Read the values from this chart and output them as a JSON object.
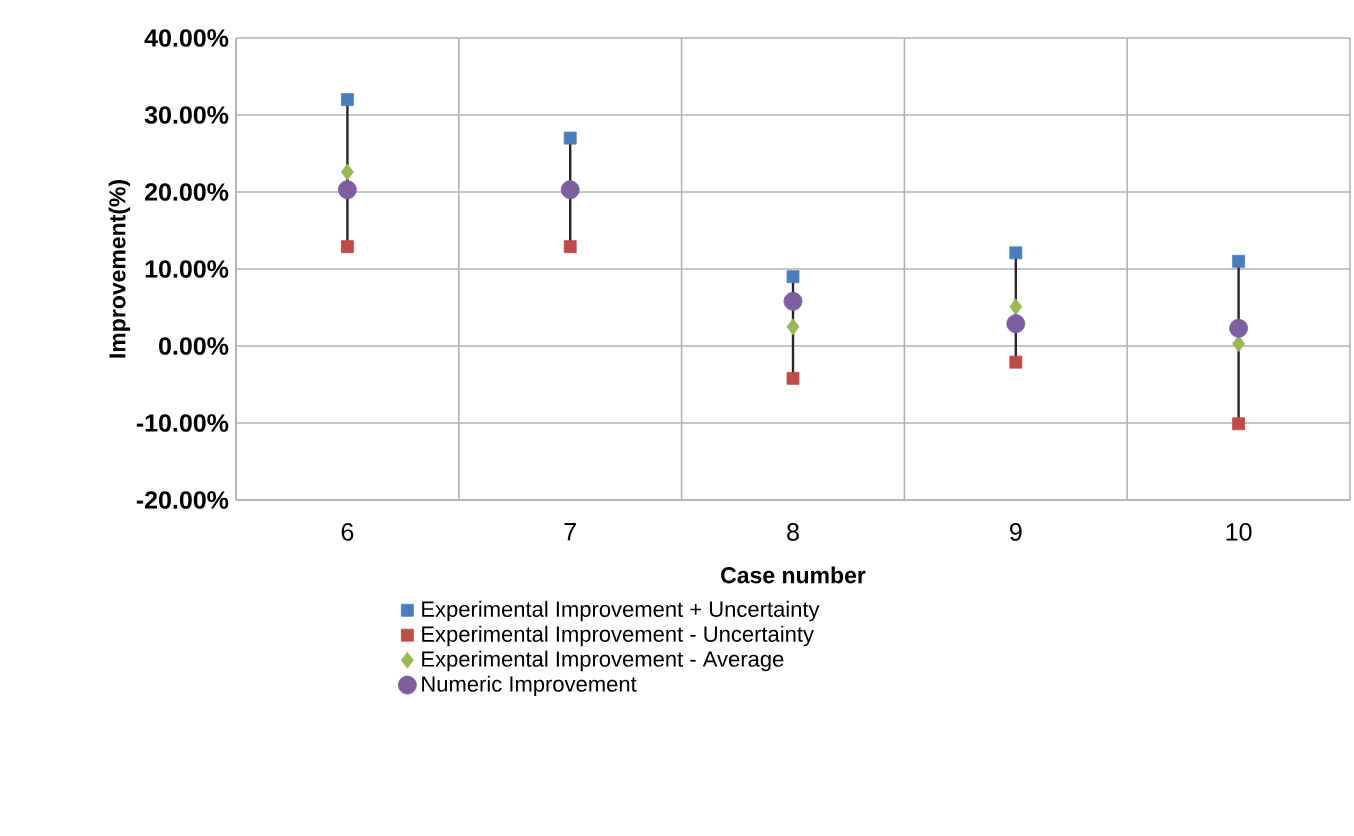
{
  "chart_data": {
    "type": "scatter",
    "xlabel": "Case number",
    "ylabel": "Improvement(%)",
    "categories": [
      "6",
      "7",
      "8",
      "9",
      "10"
    ],
    "ylim": [
      -20,
      40
    ],
    "yticks": [
      {
        "value": -20,
        "label": "-20.00%"
      },
      {
        "value": -10,
        "label": "-10.00%"
      },
      {
        "value": 0,
        "label": "0.00%"
      },
      {
        "value": 10,
        "label": "10.00%"
      },
      {
        "value": 20,
        "label": "20.00%"
      },
      {
        "value": 30,
        "label": "30.00%"
      },
      {
        "value": 40,
        "label": "40.00%"
      }
    ],
    "grid": true,
    "legend": "bottom",
    "series": [
      {
        "name": "Experimental Improvement + Uncertainty",
        "color": "#4a7ebb",
        "marker": "square",
        "values": [
          32.0,
          27.0,
          9.0,
          12.1,
          11.0
        ]
      },
      {
        "name": "Experimental Improvement - Uncertainty",
        "color": "#be4b48",
        "marker": "square",
        "values": [
          12.9,
          12.9,
          -4.2,
          -2.1,
          -10.1
        ]
      },
      {
        "name": "Experimental Improvement - Average",
        "color": "#98b954",
        "marker": "diamond",
        "values": [
          22.6,
          null,
          2.5,
          5.1,
          0.3
        ]
      },
      {
        "name": "Numeric Improvement",
        "color": "#7d5fa0",
        "marker": "circle",
        "values": [
          20.3,
          20.3,
          5.8,
          2.9,
          2.3
        ]
      },
      {
        "type": "line",
        "color": "#262626",
        "x": [
          "6",
          "6"
        ],
        "values": [
          12.9,
          32.0
        ]
      },
      {
        "type": "line",
        "color": "#262626",
        "x": [
          "7",
          "7"
        ],
        "values": [
          12.9,
          27.0
        ]
      },
      {
        "type": "line",
        "color": "#262626",
        "x": [
          "8",
          "8"
        ],
        "values": [
          -4.2,
          9.0
        ]
      },
      {
        "type": "line",
        "color": "#262626",
        "x": [
          "9",
          "9"
        ],
        "values": [
          -2.1,
          12.1
        ]
      },
      {
        "type": "line",
        "color": "#262626",
        "x": [
          "10",
          "10"
        ],
        "values": [
          -10.1,
          11.0
        ]
      }
    ]
  }
}
